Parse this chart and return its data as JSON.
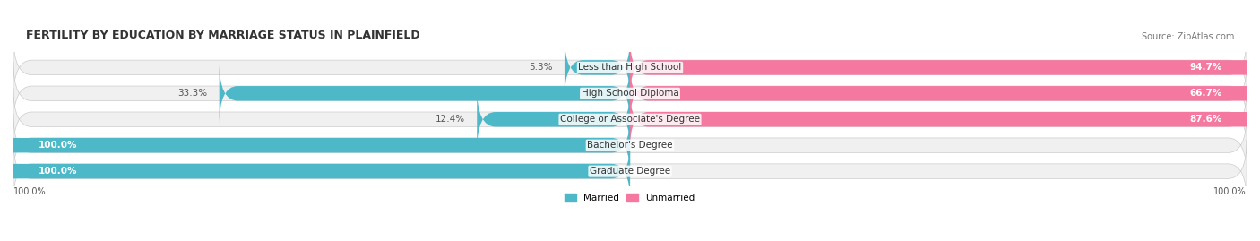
{
  "title": "FERTILITY BY EDUCATION BY MARRIAGE STATUS IN PLAINFIELD",
  "source": "Source: ZipAtlas.com",
  "categories": [
    "Less than High School",
    "High School Diploma",
    "College or Associate's Degree",
    "Bachelor's Degree",
    "Graduate Degree"
  ],
  "married": [
    5.3,
    33.3,
    12.4,
    100.0,
    100.0
  ],
  "unmarried": [
    94.7,
    66.7,
    87.6,
    0.0,
    0.0
  ],
  "married_color": "#4db8c8",
  "unmarried_color": "#f478a0",
  "unmarried_light_color": "#f9b8cc",
  "bg_bar": "#f0f0f0",
  "bar_height": 0.55,
  "figsize": [
    14.06,
    2.69
  ],
  "dpi": 100,
  "title_fontsize": 9,
  "label_fontsize": 7.5,
  "tick_fontsize": 7,
  "source_fontsize": 7
}
